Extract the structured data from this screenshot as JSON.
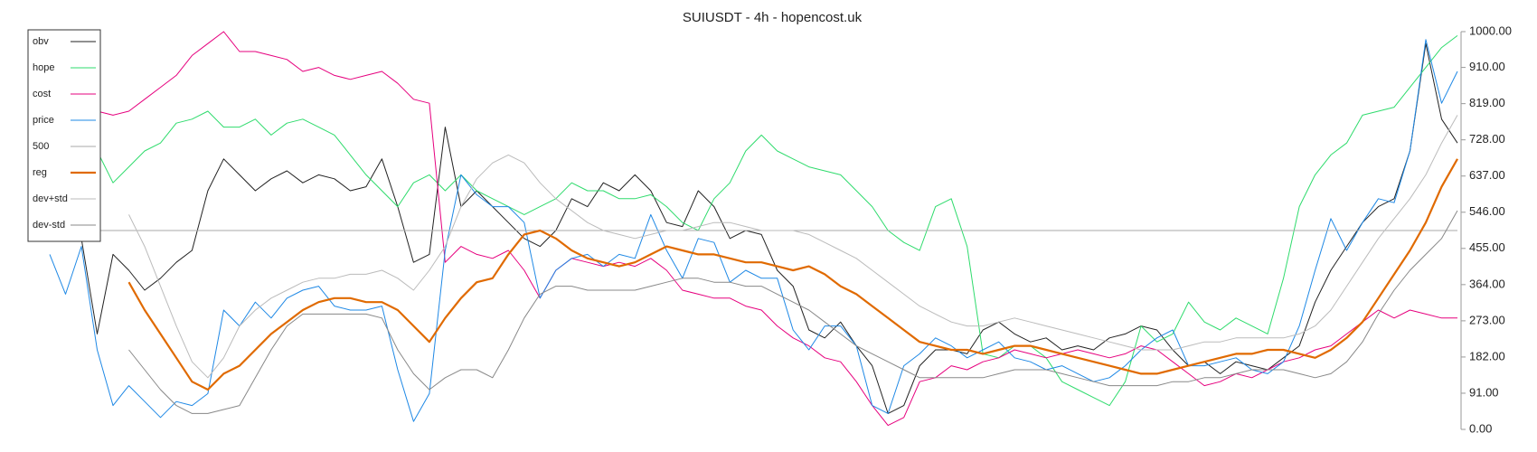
{
  "chart_data": {
    "type": "line",
    "title": "SUIUSDT - 4h - hopencost.uk",
    "legend": "top-left",
    "grid": false,
    "ylim": [
      0,
      1000
    ],
    "yticks": [
      {
        "value": 0,
        "label": "0.00"
      },
      {
        "value": 91,
        "label": "91.00"
      },
      {
        "value": 182,
        "label": "182.00"
      },
      {
        "value": 273,
        "label": "273.00"
      },
      {
        "value": 364,
        "label": "364.00"
      },
      {
        "value": 455,
        "label": "455.00"
      },
      {
        "value": 546,
        "label": "546.00"
      },
      {
        "value": 637,
        "label": "637.00"
      },
      {
        "value": 728,
        "label": "728.00"
      },
      {
        "value": 819,
        "label": "819.00"
      },
      {
        "value": 910,
        "label": "910.00"
      },
      {
        "value": 1000,
        "label": "1000.00"
      }
    ],
    "series": [
      {
        "name": "obv",
        "color": "#222222",
        "width": 1,
        "values": [
          700,
          520,
          480,
          240,
          440,
          400,
          350,
          380,
          420,
          450,
          600,
          680,
          640,
          600,
          630,
          650,
          620,
          640,
          630,
          600,
          610,
          680,
          560,
          420,
          440,
          760,
          560,
          600,
          560,
          520,
          480,
          460,
          500,
          580,
          560,
          620,
          600,
          640,
          600,
          520,
          510,
          600,
          560,
          480,
          500,
          490,
          400,
          360,
          250,
          230,
          270,
          210,
          160,
          40,
          60,
          160,
          200,
          200,
          190,
          250,
          270,
          240,
          220,
          230,
          200,
          210,
          200,
          230,
          240,
          260,
          250,
          200,
          160,
          170,
          140,
          170,
          160,
          150,
          180,
          210,
          320,
          400,
          460,
          520,
          560,
          580,
          700,
          970,
          780,
          720
        ]
      },
      {
        "name": "hope",
        "color": "#2edb6c",
        "width": 1,
        "values": [
          760,
          730,
          690,
          700,
          620,
          660,
          700,
          720,
          770,
          780,
          800,
          760,
          760,
          780,
          740,
          770,
          780,
          760,
          740,
          690,
          640,
          600,
          560,
          620,
          640,
          600,
          640,
          600,
          580,
          560,
          540,
          560,
          580,
          620,
          600,
          600,
          580,
          580,
          590,
          560,
          520,
          500,
          580,
          620,
          700,
          740,
          700,
          680,
          660,
          650,
          640,
          600,
          560,
          500,
          470,
          450,
          560,
          580,
          460,
          190,
          180,
          210,
          210,
          180,
          120,
          100,
          80,
          60,
          120,
          260,
          220,
          240,
          320,
          270,
          250,
          280,
          260,
          240,
          380,
          560,
          640,
          690,
          720,
          790,
          800,
          810,
          860,
          910,
          960,
          990
        ]
      },
      {
        "name": "cost",
        "color": "#e6007e",
        "width": 1,
        "values": [
          770,
          760,
          790,
          800,
          790,
          800,
          830,
          860,
          890,
          940,
          970,
          1000,
          950,
          950,
          940,
          930,
          900,
          910,
          890,
          880,
          890,
          900,
          870,
          830,
          820,
          420,
          460,
          440,
          430,
          450,
          400,
          330,
          400,
          430,
          420,
          410,
          420,
          410,
          430,
          400,
          350,
          340,
          330,
          330,
          310,
          300,
          260,
          230,
          210,
          180,
          170,
          120,
          60,
          10,
          30,
          120,
          130,
          160,
          150,
          170,
          180,
          200,
          190,
          180,
          190,
          200,
          190,
          180,
          190,
          210,
          200,
          170,
          140,
          110,
          120,
          140,
          130,
          150,
          170,
          180,
          200,
          210,
          240,
          270,
          300,
          280,
          300,
          290,
          280,
          280
        ]
      },
      {
        "name": "price",
        "color": "#1e88e5",
        "width": 1,
        "values": [
          440,
          340,
          460,
          200,
          60,
          110,
          70,
          30,
          70,
          60,
          90,
          300,
          260,
          320,
          280,
          330,
          350,
          360,
          310,
          300,
          300,
          310,
          150,
          20,
          90,
          450,
          640,
          590,
          560,
          560,
          520,
          330,
          400,
          430,
          440,
          410,
          440,
          430,
          540,
          450,
          380,
          480,
          470,
          370,
          400,
          380,
          380,
          250,
          200,
          260,
          260,
          210,
          60,
          40,
          160,
          190,
          230,
          210,
          180,
          200,
          220,
          180,
          170,
          150,
          160,
          140,
          120,
          130,
          160,
          200,
          230,
          250,
          160,
          160,
          170,
          180,
          150,
          140,
          170,
          260,
          400,
          530,
          450,
          520,
          580,
          570,
          700,
          980,
          820,
          900
        ]
      },
      {
        "name": "500",
        "color": "#aaaaaa",
        "width": 1,
        "values": [
          500,
          500,
          500,
          500,
          500,
          500,
          500,
          500,
          500,
          500,
          500,
          500,
          500,
          500,
          500,
          500,
          500,
          500,
          500,
          500,
          500,
          500,
          500,
          500,
          500,
          500,
          500,
          500,
          500,
          500,
          500,
          500,
          500,
          500,
          500,
          500,
          500,
          500,
          500,
          500,
          500,
          500,
          500,
          500,
          500,
          500,
          500,
          500,
          500,
          500,
          500,
          500,
          500,
          500,
          500,
          500,
          500,
          500,
          500,
          500,
          500,
          500,
          500,
          500,
          500,
          500,
          500,
          500,
          500,
          500,
          500,
          500,
          500,
          500,
          500,
          500,
          500,
          500,
          500,
          500,
          500,
          500,
          500,
          500,
          500,
          500,
          500,
          500,
          500,
          500
        ]
      },
      {
        "name": "reg",
        "color": "#e06a00",
        "width": 2.2,
        "values": [
          null,
          null,
          null,
          null,
          null,
          370,
          300,
          240,
          180,
          120,
          100,
          140,
          160,
          200,
          240,
          270,
          300,
          320,
          330,
          330,
          320,
          320,
          300,
          260,
          220,
          280,
          330,
          370,
          380,
          440,
          490,
          500,
          480,
          450,
          430,
          420,
          410,
          420,
          440,
          460,
          450,
          440,
          440,
          430,
          420,
          420,
          410,
          400,
          410,
          390,
          360,
          340,
          310,
          280,
          250,
          220,
          210,
          200,
          200,
          190,
          200,
          210,
          210,
          200,
          190,
          180,
          170,
          160,
          150,
          140,
          140,
          150,
          160,
          170,
          180,
          190,
          190,
          200,
          200,
          190,
          180,
          200,
          230,
          270,
          330,
          390,
          450,
          520,
          610,
          680
        ]
      },
      {
        "name": "dev+std",
        "color": "#bbbbbb",
        "width": 1,
        "values": [
          null,
          null,
          null,
          null,
          null,
          540,
          460,
          360,
          260,
          170,
          130,
          180,
          260,
          300,
          330,
          350,
          370,
          380,
          380,
          390,
          390,
          400,
          380,
          350,
          400,
          460,
          560,
          630,
          670,
          690,
          670,
          620,
          580,
          550,
          520,
          500,
          490,
          480,
          490,
          500,
          500,
          510,
          520,
          520,
          510,
          500,
          500,
          500,
          490,
          470,
          450,
          430,
          400,
          370,
          340,
          310,
          290,
          270,
          260,
          260,
          270,
          280,
          270,
          260,
          250,
          240,
          230,
          220,
          210,
          200,
          200,
          200,
          210,
          220,
          220,
          230,
          230,
          230,
          230,
          240,
          260,
          300,
          360,
          420,
          480,
          530,
          580,
          640,
          720,
          790
        ]
      },
      {
        "name": "dev-std",
        "color": "#888888",
        "width": 1,
        "values": [
          null,
          null,
          null,
          null,
          null,
          200,
          150,
          100,
          60,
          40,
          40,
          50,
          60,
          130,
          200,
          260,
          290,
          290,
          290,
          290,
          290,
          280,
          200,
          140,
          100,
          130,
          150,
          150,
          130,
          200,
          280,
          340,
          360,
          360,
          350,
          350,
          350,
          350,
          360,
          370,
          380,
          380,
          370,
          370,
          360,
          360,
          340,
          320,
          300,
          270,
          240,
          210,
          190,
          170,
          150,
          130,
          130,
          130,
          130,
          130,
          140,
          150,
          150,
          150,
          140,
          130,
          120,
          110,
          110,
          110,
          110,
          120,
          120,
          130,
          130,
          140,
          150,
          150,
          150,
          140,
          130,
          140,
          170,
          220,
          290,
          350,
          400,
          440,
          480,
          550
        ]
      }
    ]
  }
}
